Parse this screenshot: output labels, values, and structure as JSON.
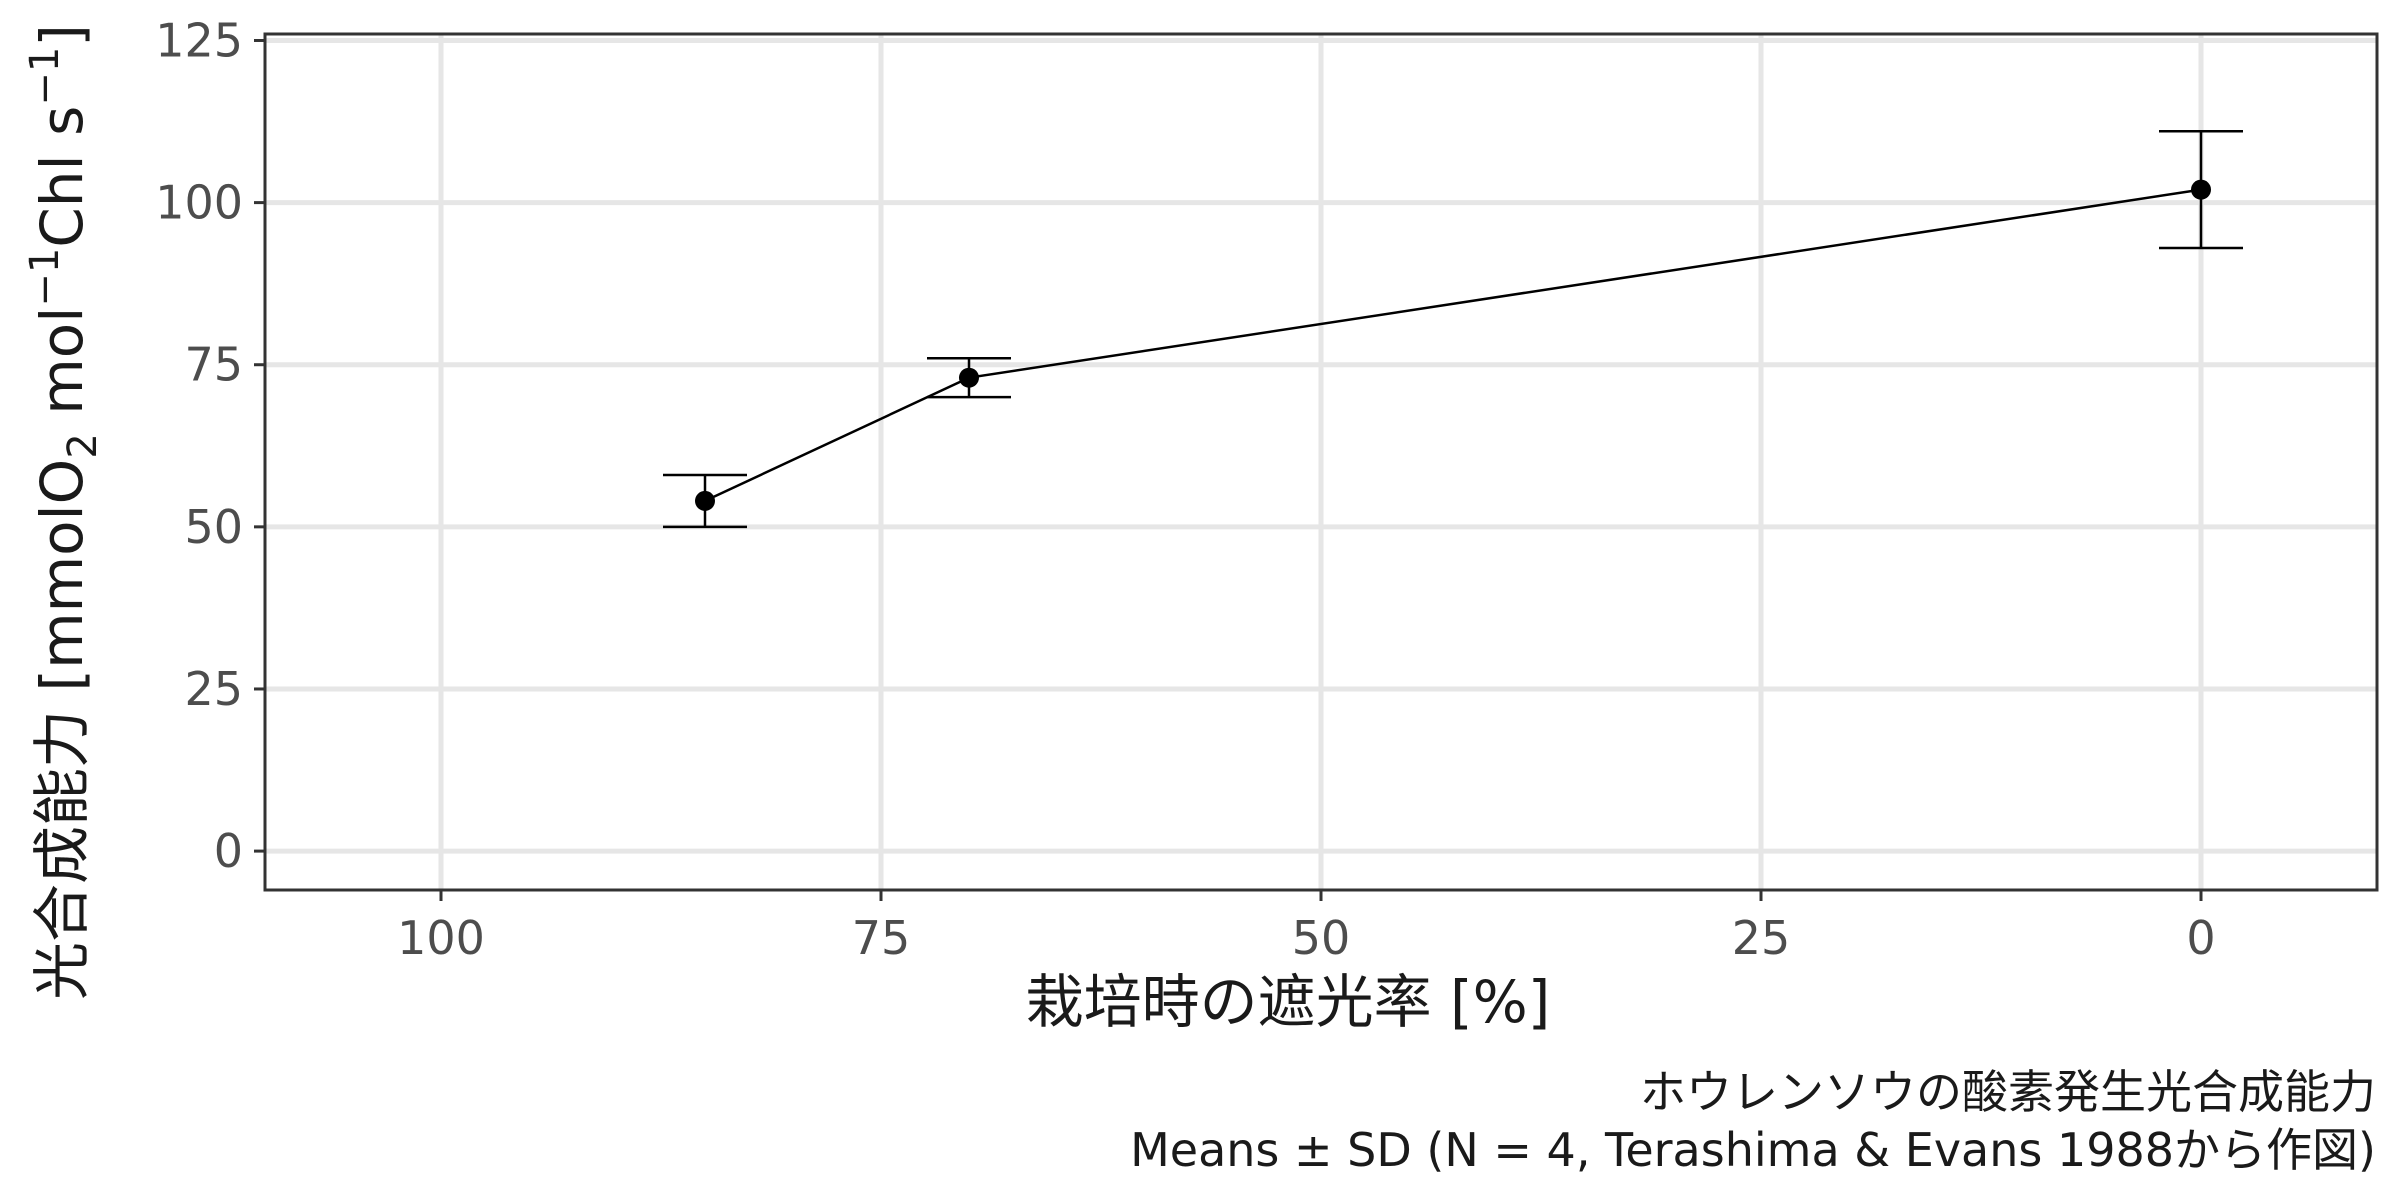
{
  "chart_data": {
    "type": "line",
    "x_reversed": true,
    "xlim": [
      110,
      -10
    ],
    "ylim": [
      -6,
      126
    ],
    "x_ticks": [
      100,
      75,
      50,
      25,
      0
    ],
    "x_tick_labels": [
      "100",
      "75",
      "50",
      "25",
      "0"
    ],
    "y_ticks": [
      0,
      25,
      50,
      75,
      100,
      125
    ],
    "y_tick_labels": [
      "0",
      "25",
      "50",
      "75",
      "100",
      "125"
    ],
    "grid": true,
    "xlabel": "栽培時の遮光率 [%]",
    "ylabel_main": "光合成能力 [mmolO",
    "ylabel_sub": "2",
    "ylabel_mid": " mol",
    "ylabel_sup1": "−1",
    "ylabel_after": "Chl s",
    "ylabel_sup2": "−1",
    "ylabel_close": "]",
    "caption_line1": "ホウレンソウの酸素発生光合成能力",
    "caption_line2": "Means ± SD (N = 4, Terashima & Evans 1988から作図)",
    "series": [
      {
        "x": [
          85,
          70,
          0
        ],
        "y": [
          54,
          73,
          102
        ],
        "sd": [
          4,
          3,
          9
        ]
      }
    ]
  }
}
